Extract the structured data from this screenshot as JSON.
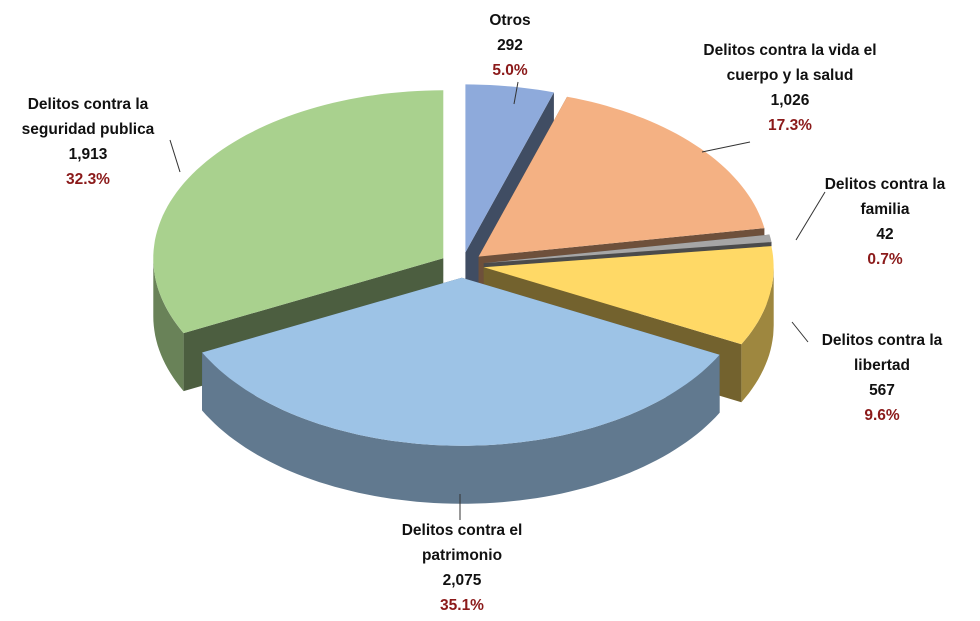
{
  "chart_data": {
    "type": "pie3d",
    "categories": [
      "Otros",
      "Delitos contra la vida el cuerpo y la salud",
      "Delitos contra la familia",
      "Delitos contra la libertad",
      "Delitos contra el patrimonio",
      "Delitos contra la seguridad publica"
    ],
    "values": [
      292,
      1026,
      42,
      567,
      2075,
      1913
    ],
    "value_labels": [
      "292",
      "1,026",
      "42",
      "567",
      "2,075",
      "1,913"
    ],
    "percentages": [
      5.0,
      17.3,
      0.7,
      9.6,
      35.1,
      32.3
    ],
    "percentage_labels": [
      "5.0%",
      "17.3%",
      "0.7%",
      "9.6%",
      "35.1%",
      "32.3%"
    ],
    "colors": [
      "#8eaadb",
      "#f4b183",
      "#a6a6a6",
      "#ffd966",
      "#9dc3e6",
      "#a9d18e"
    ]
  }
}
